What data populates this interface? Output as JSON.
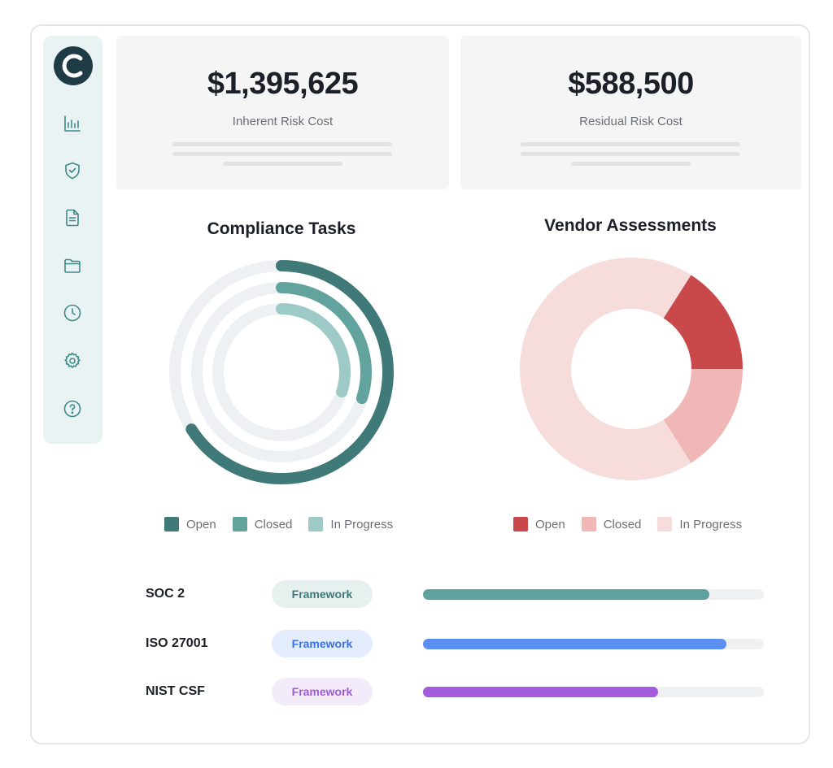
{
  "nav": {
    "items": [
      {
        "id": "analytics",
        "icon": "bar-chart-icon"
      },
      {
        "id": "security",
        "icon": "shield-check-icon"
      },
      {
        "id": "documents",
        "icon": "document-icon"
      },
      {
        "id": "folders",
        "icon": "folder-icon"
      },
      {
        "id": "history",
        "icon": "clock-icon"
      },
      {
        "id": "settings",
        "icon": "gear-icon"
      },
      {
        "id": "help",
        "icon": "help-circle-icon"
      }
    ]
  },
  "cards": {
    "inherent": {
      "value": "$1,395,625",
      "label": "Inherent Risk Cost"
    },
    "residual": {
      "value": "$588,500",
      "label": "Residual Risk Cost"
    }
  },
  "compliance": {
    "title": "Compliance Tasks",
    "legend": [
      {
        "label": "Open",
        "color": "#3f7a78"
      },
      {
        "label": "Closed",
        "color": "#62a39e"
      },
      {
        "label": "In Progress",
        "color": "#9dcac6"
      }
    ],
    "rings": [
      {
        "name": "Open",
        "fraction": 0.66,
        "color": "#3f7a78"
      },
      {
        "name": "Closed",
        "fraction": 0.3,
        "color": "#62a39e"
      },
      {
        "name": "In Progress",
        "fraction": 0.3,
        "color": "#9dcac6"
      }
    ]
  },
  "vendor": {
    "title": "Vendor Assessments",
    "legend": [
      {
        "label": "Open",
        "color": "#c9494b"
      },
      {
        "label": "Closed",
        "color": "#efb8b7"
      },
      {
        "label": "In Progress",
        "color": "#f6dddc"
      }
    ],
    "slices": [
      {
        "name": "Open",
        "value": 16,
        "color": "#c9494b"
      },
      {
        "name": "Closed",
        "value": 16,
        "color": "#efb8b7"
      },
      {
        "name": "In Progress",
        "value": 68,
        "color": "#f6dddc"
      }
    ]
  },
  "frameworks": [
    {
      "name": "SOC 2",
      "tag": "Framework",
      "progress": 0.84,
      "color": "#5fa29d",
      "tag_bg": "#e6f0ef",
      "tag_color": "#3f7a78"
    },
    {
      "name": "ISO 27001",
      "tag": "Framework",
      "progress": 0.89,
      "color": "#5b8ff1",
      "tag_bg": "#e3edfc",
      "tag_color": "#3b72e0"
    },
    {
      "name": "NIST CSF",
      "tag": "Framework",
      "progress": 0.69,
      "color": "#a25bdb",
      "tag_bg": "#f3eafa",
      "tag_color": "#a05bd7"
    }
  ]
}
